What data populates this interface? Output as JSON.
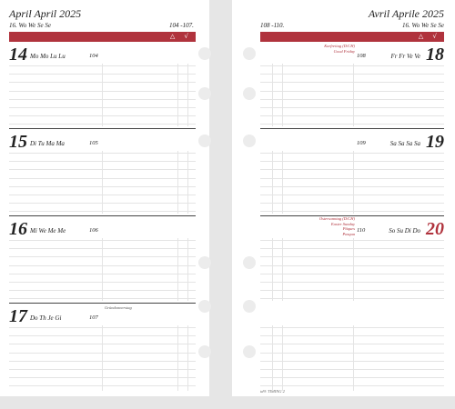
{
  "left_page": {
    "title": "April  April 2025",
    "week_label": "16. Wo We Se Se",
    "week_range": "104 -107.",
    "days": [
      {
        "num": "14",
        "names": "Mo Mo Lu Lu",
        "doy": "104",
        "note": ""
      },
      {
        "num": "15",
        "names": "Di Tu Ma Ma",
        "doy": "105",
        "note": ""
      },
      {
        "num": "16",
        "names": "Mi We Me Me",
        "doy": "106",
        "note": ""
      },
      {
        "num": "17",
        "names": "Do Th Je Gi",
        "doy": "107",
        "note": "Gründonnerstag"
      }
    ]
  },
  "right_page": {
    "title": "Avril  Aprile 2025",
    "week_label": "16. Wo We Se Se",
    "week_range": "108 -110.",
    "days": [
      {
        "num": "18",
        "names": "Fr Fr Ve Ve",
        "doy": "108",
        "event": "Karfreitag (D/CH)\nGood Friday",
        "num_color": "#222"
      },
      {
        "num": "19",
        "names": "Sa Sa Sa Sa",
        "doy": "109",
        "event": "",
        "num_color": "#222"
      },
      {
        "num": "20",
        "names": "So Su Di Do",
        "doy": "110",
        "event": "Ostersonntag (D/CH)\nEaster Sunday\nPâques\nPasqua",
        "num_color": "#b0333d"
      }
    ],
    "footer": "td® TIMING 2"
  },
  "band_marks": "△ √",
  "colors": {
    "accent": "#b0333d"
  }
}
